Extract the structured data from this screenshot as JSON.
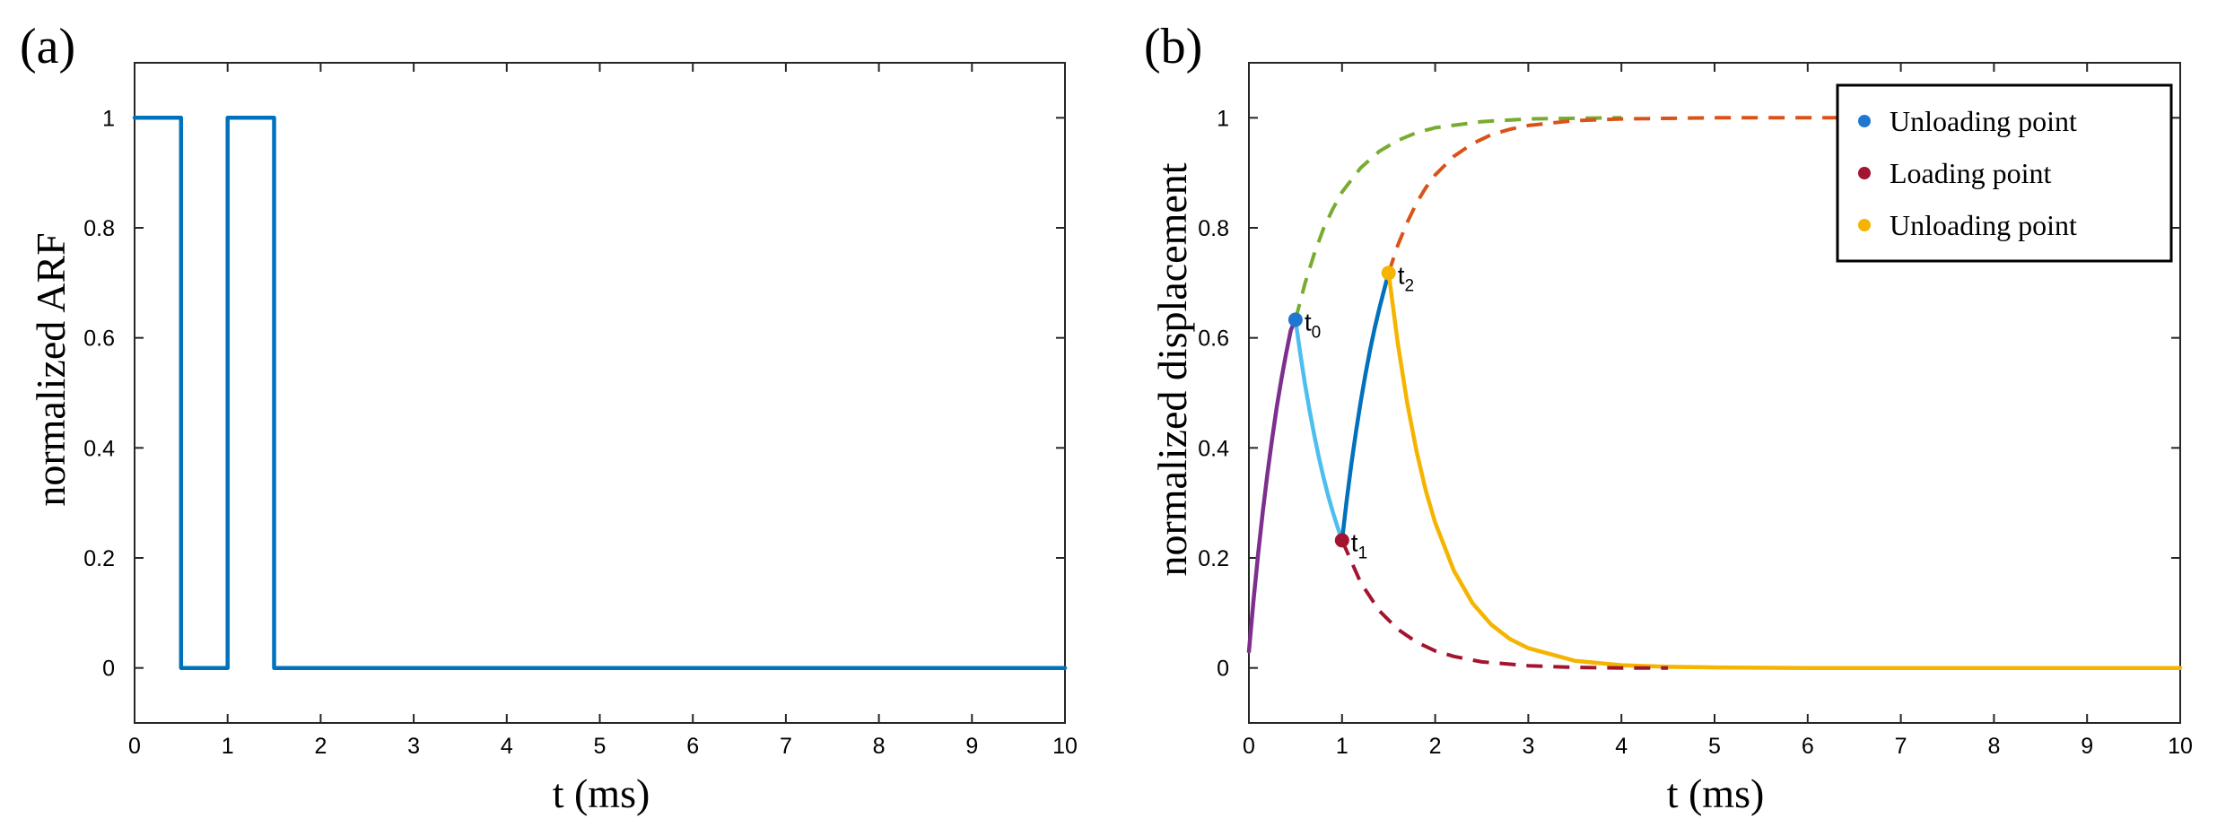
{
  "chart_data": [
    {
      "panel_label": "(a)",
      "type": "line",
      "xlabel": "t (ms)",
      "ylabel": "normalized ARF",
      "xlim": [
        0,
        10
      ],
      "ylim": [
        -0.1,
        1.1
      ],
      "xticks": [
        0,
        1,
        2,
        3,
        4,
        5,
        6,
        7,
        8,
        9,
        10
      ],
      "yticks": [
        0,
        0.2,
        0.4,
        0.6,
        0.8,
        1
      ],
      "xtick_labels": [
        "0",
        "1",
        "2",
        "3",
        "4",
        "5",
        "6",
        "7",
        "8",
        "9",
        "10"
      ],
      "ytick_labels": [
        "0",
        "0.2",
        "0.4",
        "0.6",
        "0.8",
        "1"
      ],
      "grid": false,
      "series": [
        {
          "color": "#0072bd",
          "style": "solid",
          "step": true,
          "x": [
            0,
            0.5,
            0.5,
            1,
            1,
            1.5,
            1.5,
            10
          ],
          "y": [
            1,
            1,
            0,
            0,
            1,
            1,
            0,
            0
          ]
        }
      ]
    },
    {
      "panel_label": "(b)",
      "type": "line",
      "xlabel": "t (ms)",
      "ylabel": "normalized displacement",
      "xlim": [
        0,
        10
      ],
      "ylim": [
        -0.1,
        1.1
      ],
      "xticks": [
        0,
        1,
        2,
        3,
        4,
        5,
        6,
        7,
        8,
        9,
        10
      ],
      "yticks": [
        0,
        0.2,
        0.4,
        0.6,
        0.8,
        1
      ],
      "xtick_labels": [
        "0",
        "1",
        "2",
        "3",
        "4",
        "5",
        "6",
        "7",
        "8",
        "9",
        "10"
      ],
      "ytick_labels": [
        "0",
        "0.2",
        "0.4",
        "0.6",
        "0.8",
        "1"
      ],
      "grid": false,
      "legend_position": "top-right",
      "legend": [
        {
          "label": "Unloading point",
          "color": "#1f77d0"
        },
        {
          "label": "Loading point",
          "color": "#a2142f"
        },
        {
          "label": "Unloading point",
          "color": "#f5b400"
        }
      ],
      "series": [
        {
          "color": "#7e2f8e",
          "style": "solid",
          "x": [
            0,
            0.05,
            0.1,
            0.15,
            0.2,
            0.25,
            0.3,
            0.35,
            0.4,
            0.45,
            0.5
          ],
          "y": [
            0.03,
            0.124,
            0.209,
            0.286,
            0.355,
            0.418,
            0.475,
            0.526,
            0.572,
            0.614,
            0.633
          ]
        },
        {
          "color": "#4dbeee",
          "style": "solid",
          "x": [
            0.5,
            0.55,
            0.6,
            0.65,
            0.7,
            0.75,
            0.8,
            0.85,
            0.9,
            0.95,
            1.0
          ],
          "y": [
            0.633,
            0.573,
            0.518,
            0.469,
            0.424,
            0.384,
            0.347,
            0.314,
            0.284,
            0.257,
            0.232
          ]
        },
        {
          "color": "#0072bd",
          "style": "solid",
          "x": [
            1.0,
            1.05,
            1.1,
            1.15,
            1.2,
            1.25,
            1.3,
            1.35,
            1.4,
            1.45,
            1.5
          ],
          "y": [
            0.232,
            0.305,
            0.371,
            0.43,
            0.484,
            0.533,
            0.577,
            0.617,
            0.653,
            0.686,
            0.718
          ]
        },
        {
          "color": "#f5b400",
          "style": "solid",
          "x": [
            1.5,
            1.6,
            1.7,
            1.8,
            1.9,
            2.0,
            2.2,
            2.4,
            2.6,
            2.8,
            3.0,
            3.5,
            4.0,
            4.5,
            5.0,
            6.0,
            7.0,
            8.0,
            9.0,
            10.0
          ],
          "y": [
            0.718,
            0.588,
            0.481,
            0.394,
            0.322,
            0.264,
            0.177,
            0.118,
            0.079,
            0.053,
            0.036,
            0.013,
            0.005,
            0.002,
            0.001,
            0,
            0,
            0,
            0,
            0
          ]
        },
        {
          "color": "#77ac30",
          "style": "dashed",
          "x": [
            0.5,
            0.6,
            0.7,
            0.8,
            0.9,
            1.0,
            1.2,
            1.4,
            1.6,
            1.8,
            2.0,
            2.5,
            3.0,
            3.5,
            4.0
          ],
          "y": [
            0.633,
            0.698,
            0.752,
            0.798,
            0.834,
            0.865,
            0.909,
            0.939,
            0.959,
            0.973,
            0.982,
            0.993,
            0.998,
            0.999,
            1.0
          ]
        },
        {
          "color": "#a2142f",
          "style": "dashed",
          "x": [
            1.0,
            1.2,
            1.4,
            1.6,
            1.8,
            2.0,
            2.2,
            2.5,
            3.0,
            3.5,
            4.0,
            4.5
          ],
          "y": [
            0.232,
            0.155,
            0.104,
            0.07,
            0.047,
            0.031,
            0.021,
            0.011,
            0.004,
            0.001,
            0.0,
            0.0
          ]
        },
        {
          "color": "#d95319",
          "style": "dashed",
          "x": [
            1.5,
            1.6,
            1.7,
            1.8,
            1.9,
            2.0,
            2.2,
            2.4,
            2.6,
            2.8,
            3.0,
            3.5,
            4.0,
            5.0,
            6.0,
            7.0
          ],
          "y": [
            0.718,
            0.769,
            0.81,
            0.845,
            0.873,
            0.896,
            0.93,
            0.953,
            0.969,
            0.979,
            0.986,
            0.995,
            0.998,
            1.0,
            1.0,
            1.0
          ]
        }
      ],
      "points": [
        {
          "x": 0.5,
          "y": 0.633,
          "color": "#1f77d0",
          "label": "t",
          "sub": "0"
        },
        {
          "x": 1.0,
          "y": 0.232,
          "color": "#a2142f",
          "label": "t",
          "sub": "1"
        },
        {
          "x": 1.5,
          "y": 0.718,
          "color": "#f5b400",
          "label": "t",
          "sub": "2"
        }
      ]
    }
  ]
}
